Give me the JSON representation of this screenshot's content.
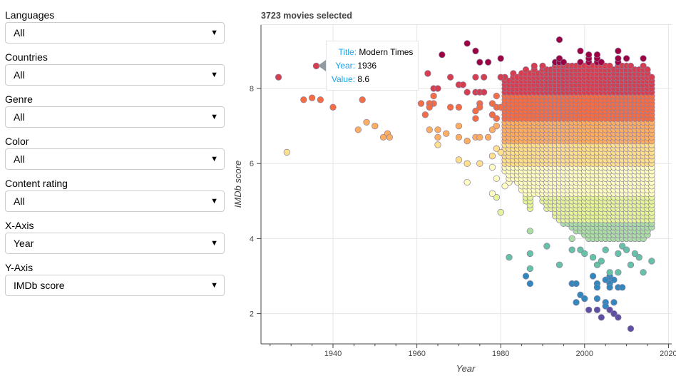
{
  "controls": [
    {
      "label": "Languages",
      "value": "All"
    },
    {
      "label": "Countries",
      "value": "All"
    },
    {
      "label": "Genre",
      "value": "All"
    },
    {
      "label": "Color",
      "value": "All"
    },
    {
      "label": "Content rating",
      "value": "All"
    },
    {
      "label": "X-Axis",
      "value": "Year"
    },
    {
      "label": "Y-Axis",
      "value": "IMDb score"
    }
  ],
  "caret_icon": "▼",
  "tooltip": {
    "title_label": "Title:",
    "title_value": "Modern Times",
    "year_label": "Year:",
    "year_value": "1936",
    "value_label": "Value:",
    "value_value": "8.6"
  },
  "chart_data": {
    "type": "scatter",
    "title": "3723 movies selected",
    "xlabel": "Year",
    "ylabel": "IMDb score",
    "xlim": [
      1924,
      2021
    ],
    "ylim": [
      1.2,
      9.8
    ],
    "xticks": [
      1940,
      1960,
      1980,
      2000,
      2020
    ],
    "yticks": [
      2,
      4,
      6,
      8
    ],
    "grid": true,
    "color_map": "Spectral (by IMDb score)",
    "palette": [
      "#5e4fa2",
      "#3288bd",
      "#66c2a5",
      "#abdda4",
      "#e6f598",
      "#ffffbf",
      "#fee08b",
      "#fdae61",
      "#f46d43",
      "#d53e4f",
      "#9e0142"
    ],
    "points": [
      [
        1927,
        8.3
      ],
      [
        1936,
        8.6
      ],
      [
        1929,
        6.3
      ],
      [
        1933,
        7.7
      ],
      [
        1935,
        7.75
      ],
      [
        1937,
        7.7
      ],
      [
        1940,
        7.5
      ],
      [
        1947,
        7.7
      ],
      [
        1946,
        6.9
      ],
      [
        1948,
        7.1
      ],
      [
        1950,
        7.0
      ],
      [
        1952,
        6.7
      ],
      [
        1953,
        6.8
      ],
      [
        1953.5,
        6.7
      ],
      [
        1966,
        8.9
      ],
      [
        1972,
        9.2
      ],
      [
        1974,
        9.0
      ],
      [
        1975,
        8.7
      ],
      [
        1977,
        8.7
      ],
      [
        1980,
        8.8
      ],
      [
        1962.6,
        8.4
      ],
      [
        1964,
        8.0
      ],
      [
        1965,
        8.0
      ],
      [
        1964,
        7.8
      ],
      [
        1964,
        7.6
      ],
      [
        1961,
        7.6
      ],
      [
        1963,
        7.6
      ],
      [
        1963,
        7.5
      ],
      [
        1962,
        7.3
      ],
      [
        1968,
        8.3
      ],
      [
        1970,
        8.1
      ],
      [
        1971,
        8.1
      ],
      [
        1972,
        7.9
      ],
      [
        1974,
        8.3
      ],
      [
        1976,
        8.3
      ],
      [
        1974,
        7.9
      ],
      [
        1975,
        7.9
      ],
      [
        1976,
        7.9
      ],
      [
        1975,
        7.6
      ],
      [
        1968,
        7.5
      ],
      [
        1970,
        7.5
      ],
      [
        1974,
        7.4
      ],
      [
        1975,
        7.5
      ],
      [
        1974,
        7.2
      ],
      [
        1970,
        7.0
      ],
      [
        1963,
        6.9
      ],
      [
        1965,
        6.9
      ],
      [
        1965,
        6.7
      ],
      [
        1965,
        6.5
      ],
      [
        1967,
        6.8
      ],
      [
        1970,
        6.7
      ],
      [
        1972,
        6.6
      ],
      [
        1974,
        6.7
      ],
      [
        1975,
        6.7
      ],
      [
        1977,
        6.7
      ],
      [
        1970,
        6.1
      ],
      [
        1972,
        6.0
      ],
      [
        1975,
        6.0
      ],
      [
        1972,
        5.5
      ],
      [
        1978,
        5.9
      ],
      [
        1979,
        5.6
      ],
      [
        1979,
        5.1
      ],
      [
        1978,
        6.2
      ],
      [
        1980,
        6.3
      ],
      [
        1979,
        6.4
      ],
      [
        1978,
        6.9
      ],
      [
        1979,
        7.0
      ],
      [
        1978,
        7.6
      ],
      [
        1979,
        7.5
      ],
      [
        1980,
        7.5
      ],
      [
        1978,
        7.3
      ],
      [
        1979,
        7.2
      ],
      [
        1979,
        7.8
      ],
      [
        1980,
        8.3
      ],
      [
        1978,
        5.2
      ],
      [
        1981,
        5.4
      ],
      [
        1980,
        4.7
      ],
      [
        1982,
        3.5
      ],
      [
        1987,
        4.2
      ],
      [
        1987,
        3.6
      ],
      [
        1987,
        3.2
      ],
      [
        1986,
        3.0
      ],
      [
        1987,
        2.8
      ],
      [
        1991,
        3.8
      ],
      [
        1994,
        3.3
      ],
      [
        1997,
        3.7
      ],
      [
        1997,
        2.8
      ],
      [
        1998,
        2.8
      ],
      [
        1999,
        2.5
      ],
      [
        1998,
        2.3
      ],
      [
        2000,
        2.4
      ],
      [
        2001,
        2.1
      ],
      [
        2003,
        2.1
      ],
      [
        2003,
        2.4
      ],
      [
        2002,
        3.0
      ],
      [
        2004,
        1.9
      ],
      [
        2005,
        2.3
      ],
      [
        2005,
        2.2
      ],
      [
        2007,
        2.3
      ],
      [
        2006,
        2.1
      ],
      [
        2007,
        2.0
      ],
      [
        2008,
        1.9
      ],
      [
        2011,
        1.6
      ],
      [
        2003,
        2.8
      ],
      [
        2003,
        2.7
      ],
      [
        2006,
        3.0
      ],
      [
        2006,
        2.9
      ],
      [
        2006,
        2.8
      ],
      [
        2006,
        2.7
      ],
      [
        2005,
        2.9
      ],
      [
        2007,
        2.9
      ],
      [
        2008,
        2.7
      ],
      [
        2009,
        2.7
      ],
      [
        2006,
        3.1
      ],
      [
        2008,
        3.1
      ],
      [
        2014,
        3.1
      ],
      [
        2016,
        3.4
      ],
      [
        2013,
        3.5
      ],
      [
        1997,
        4.0
      ],
      [
        1999,
        3.7
      ],
      [
        2000,
        3.6
      ],
      [
        2002,
        3.5
      ],
      [
        2003,
        3.3
      ],
      [
        2004,
        3.4
      ],
      [
        2005,
        3.7
      ],
      [
        2008,
        3.6
      ],
      [
        2009,
        3.8
      ],
      [
        2010,
        3.7
      ],
      [
        2012,
        3.6
      ],
      [
        2011,
        3.3
      ],
      [
        1994,
        9.3
      ],
      [
        1999,
        9.0
      ],
      [
        2001,
        8.9
      ],
      [
        2003,
        8.9
      ],
      [
        2008,
        9.0
      ],
      [
        2010,
        8.8
      ],
      [
        2014,
        8.8
      ]
    ],
    "year_score_ranges": [
      [
        1981,
        5.8,
        8.3
      ],
      [
        1982,
        5.5,
        8.2
      ],
      [
        1983,
        5.6,
        8.4
      ],
      [
        1984,
        5.5,
        8.3
      ],
      [
        1985,
        5.3,
        8.4
      ],
      [
        1986,
        5.0,
        8.5
      ],
      [
        1987,
        4.8,
        8.4
      ],
      [
        1988,
        5.2,
        8.6
      ],
      [
        1989,
        5.2,
        8.4
      ],
      [
        1990,
        5.0,
        8.6
      ],
      [
        1991,
        4.8,
        8.5
      ],
      [
        1992,
        4.8,
        8.5
      ],
      [
        1993,
        4.6,
        8.7
      ],
      [
        1994,
        4.5,
        8.8
      ],
      [
        1995,
        4.4,
        8.7
      ],
      [
        1996,
        4.4,
        8.6
      ],
      [
        1997,
        4.3,
        8.6
      ],
      [
        1998,
        4.2,
        8.6
      ],
      [
        1999,
        4.2,
        8.7
      ],
      [
        2000,
        4.1,
        8.6
      ],
      [
        2001,
        4.0,
        8.8
      ],
      [
        2002,
        4.0,
        8.6
      ],
      [
        2003,
        4.0,
        8.8
      ],
      [
        2004,
        4.0,
        8.7
      ],
      [
        2005,
        4.0,
        8.6
      ],
      [
        2006,
        4.0,
        8.6
      ],
      [
        2007,
        4.0,
        8.5
      ],
      [
        2008,
        4.0,
        8.8
      ],
      [
        2009,
        4.0,
        8.6
      ],
      [
        2010,
        4.0,
        8.6
      ],
      [
        2011,
        4.0,
        8.6
      ],
      [
        2012,
        4.0,
        8.5
      ],
      [
        2013,
        4.0,
        8.5
      ],
      [
        2014,
        4.0,
        8.6
      ],
      [
        2015,
        4.1,
        8.5
      ],
      [
        2016,
        4.3,
        8.3
      ]
    ]
  }
}
